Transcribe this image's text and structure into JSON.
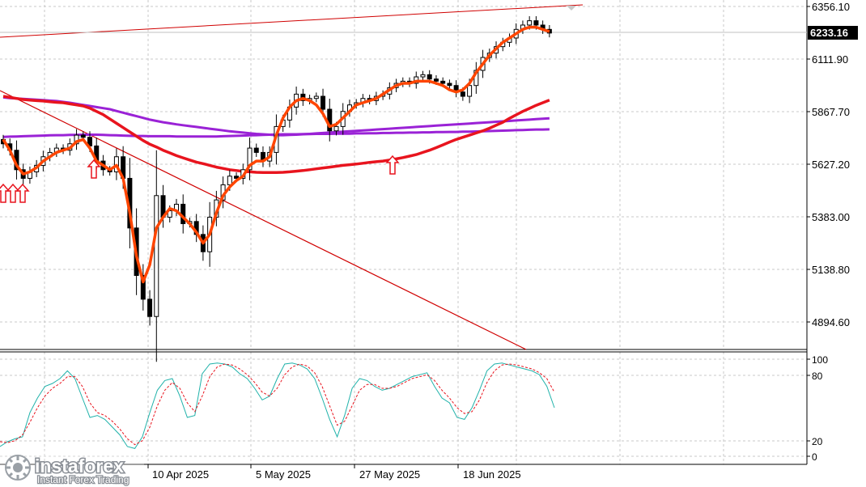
{
  "chart_data": {
    "type": "candlestick",
    "price_axis_labels": [
      "6356.10",
      "6111.90",
      "5867.70",
      "5627.20",
      "5383.00",
      "5138.80",
      "4894.60"
    ],
    "current_price": "6233.16",
    "date_labels": [
      "10 Apr 2025",
      "5 May 2025",
      "27 May 2025",
      "18 Jun 2025"
    ],
    "oscillator_axis_labels": [
      "100",
      "80",
      "20",
      "0"
    ],
    "oscillator_ylim": [
      0,
      100
    ],
    "price_ylim": [
      4800,
      6380
    ],
    "grid": true,
    "close": [
      5720,
      5690,
      5600,
      5560,
      5590,
      5620,
      5660,
      5680,
      5700,
      5690,
      5720,
      5760,
      5750,
      5710,
      5640,
      5600,
      5590,
      5660,
      5560,
      5330,
      5110,
      5000,
      4920,
      5480,
      5380,
      5410,
      5440,
      5350,
      5360,
      5300,
      5220,
      5380,
      5460,
      5530,
      5570,
      5560,
      5600,
      5700,
      5680,
      5640,
      5680,
      5800,
      5830,
      5890,
      5950,
      5920,
      5930,
      5940,
      5880,
      5780,
      5800,
      5870,
      5900,
      5910,
      5930,
      5920,
      5940,
      5950,
      5980,
      6000,
      6010,
      6000,
      6030,
      6040,
      6020,
      6010,
      6000,
      5990,
      5960,
      5940,
      5990,
      6060,
      6120,
      6140,
      6170,
      6190,
      6210,
      6250,
      6270,
      6290,
      6270,
      6250,
      6233
    ],
    "ma_fast": [
      5740,
      5690,
      5620,
      5580,
      5590,
      5610,
      5640,
      5660,
      5680,
      5690,
      5700,
      5730,
      5740,
      5700,
      5640,
      5620,
      5600,
      5620,
      5560,
      5400,
      5200,
      5080,
      5160,
      5330,
      5380,
      5420,
      5410,
      5380,
      5350,
      5310,
      5260,
      5300,
      5400,
      5480,
      5520,
      5550,
      5570,
      5620,
      5640,
      5640,
      5660,
      5760,
      5840,
      5890,
      5920,
      5930,
      5920,
      5900,
      5860,
      5800,
      5810,
      5840,
      5870,
      5900,
      5910,
      5920,
      5930,
      5950,
      5970,
      5990,
      6000,
      6000,
      6010,
      6010,
      6010,
      6000,
      5990,
      5970,
      5960,
      5970,
      6000,
      6050,
      6090,
      6130,
      6160,
      6190,
      6210,
      6230,
      6250,
      6260,
      6260,
      6250,
      6240
    ],
    "ma_red": [
      5940,
      5935,
      5930,
      5925,
      5922,
      5920,
      5918,
      5915,
      5912,
      5910,
      5905,
      5900,
      5895,
      5885,
      5870,
      5855,
      5835,
      5815,
      5795,
      5775,
      5755,
      5735,
      5718,
      5705,
      5690,
      5678,
      5665,
      5655,
      5645,
      5635,
      5628,
      5620,
      5612,
      5606,
      5600,
      5596,
      5592,
      5590,
      5588,
      5587,
      5587,
      5587,
      5588,
      5590,
      5593,
      5596,
      5600,
      5604,
      5608,
      5612,
      5616,
      5620,
      5623,
      5626,
      5630,
      5634,
      5637,
      5640,
      5645,
      5650,
      5656,
      5663,
      5670,
      5680,
      5690,
      5702,
      5715,
      5728,
      5740,
      5750,
      5760,
      5770,
      5780,
      5792,
      5806,
      5820,
      5838,
      5854,
      5870,
      5884,
      5898,
      5910,
      5922
    ],
    "ma_purple_slow": [
      5935,
      5932,
      5930,
      5928,
      5926,
      5924,
      5922,
      5920,
      5918,
      5914,
      5910,
      5905,
      5900,
      5895,
      5890,
      5885,
      5880,
      5872,
      5864,
      5856,
      5848,
      5840,
      5832,
      5826,
      5820,
      5815,
      5810,
      5806,
      5802,
      5798,
      5794,
      5790,
      5786,
      5782,
      5778,
      5775,
      5772,
      5769,
      5766,
      5764,
      5762,
      5760,
      5760,
      5761,
      5762,
      5764,
      5766,
      5768,
      5770,
      5772,
      5774,
      5776,
      5778,
      5780,
      5782,
      5784,
      5786,
      5788,
      5790,
      5792,
      5794,
      5796,
      5798,
      5800,
      5802,
      5804,
      5806,
      5808,
      5810,
      5812,
      5814,
      5816,
      5818,
      5820,
      5822,
      5824,
      5826,
      5828,
      5830,
      5832,
      5834,
      5836,
      5838
    ],
    "ma_purple_flat": [
      5752,
      5753,
      5754,
      5755,
      5756,
      5757,
      5758,
      5759,
      5760,
      5760,
      5761,
      5761,
      5762,
      5762,
      5762,
      5761,
      5760,
      5759,
      5758,
      5757,
      5756,
      5756,
      5755,
      5755,
      5755,
      5755,
      5754,
      5754,
      5754,
      5754,
      5754,
      5754,
      5754,
      5755,
      5756,
      5757,
      5758,
      5759,
      5760,
      5761,
      5762,
      5763,
      5764,
      5764,
      5764,
      5765,
      5765,
      5766,
      5766,
      5766,
      5767,
      5767,
      5767,
      5768,
      5768,
      5769,
      5769,
      5770,
      5770,
      5771,
      5771,
      5772,
      5772,
      5773,
      5773,
      5774,
      5774,
      5775,
      5775,
      5776,
      5776,
      5777,
      5778,
      5779,
      5780,
      5781,
      5782,
      5783,
      5784,
      5785,
      5786,
      5786,
      5787
    ],
    "stoch_main": [
      10,
      15,
      18,
      20,
      45,
      60,
      72,
      75,
      80,
      88,
      80,
      60,
      40,
      42,
      38,
      30,
      22,
      10,
      8,
      20,
      45,
      68,
      78,
      80,
      62,
      40,
      42,
      85,
      95,
      96,
      95,
      92,
      85,
      80,
      70,
      58,
      62,
      80,
      95,
      96,
      94,
      90,
      80,
      60,
      38,
      20,
      42,
      70,
      80,
      78,
      72,
      68,
      70,
      74,
      78,
      82,
      84,
      86,
      72,
      60,
      55,
      40,
      38,
      50,
      68,
      88,
      95,
      96,
      94,
      92,
      90,
      88,
      84,
      72,
      50
    ],
    "stoch_signal": [
      15,
      14,
      16,
      22,
      35,
      50,
      62,
      70,
      75,
      82,
      82,
      72,
      55,
      45,
      42,
      36,
      28,
      18,
      12,
      16,
      30,
      52,
      68,
      76,
      70,
      55,
      46,
      62,
      82,
      92,
      95,
      94,
      90,
      84,
      76,
      66,
      62,
      70,
      84,
      92,
      95,
      93,
      86,
      72,
      52,
      32,
      36,
      52,
      68,
      74,
      74,
      70,
      70,
      72,
      76,
      80,
      82,
      84,
      78,
      68,
      60,
      50,
      44,
      46,
      58,
      76,
      88,
      94,
      95,
      94,
      92,
      90,
      86,
      80,
      66
    ],
    "signal_arrows": [
      "up",
      "up",
      "up",
      "up",
      "up"
    ]
  },
  "logo": {
    "name": "instaforex",
    "tagline": "Instant Forex Trading"
  },
  "colors": {
    "background": "#ffffff",
    "grid": "#c8c8c8",
    "candle": "#000000",
    "ma_fast": "#ff4500",
    "ma_red": "#e8141e",
    "ma_purple": "#9a22d6",
    "trendline": "#d00000",
    "stoch_main": "#20b2aa",
    "stoch_signal": "#e8141e",
    "arrow": "#e8141e",
    "current_label_bg": "#000000"
  }
}
